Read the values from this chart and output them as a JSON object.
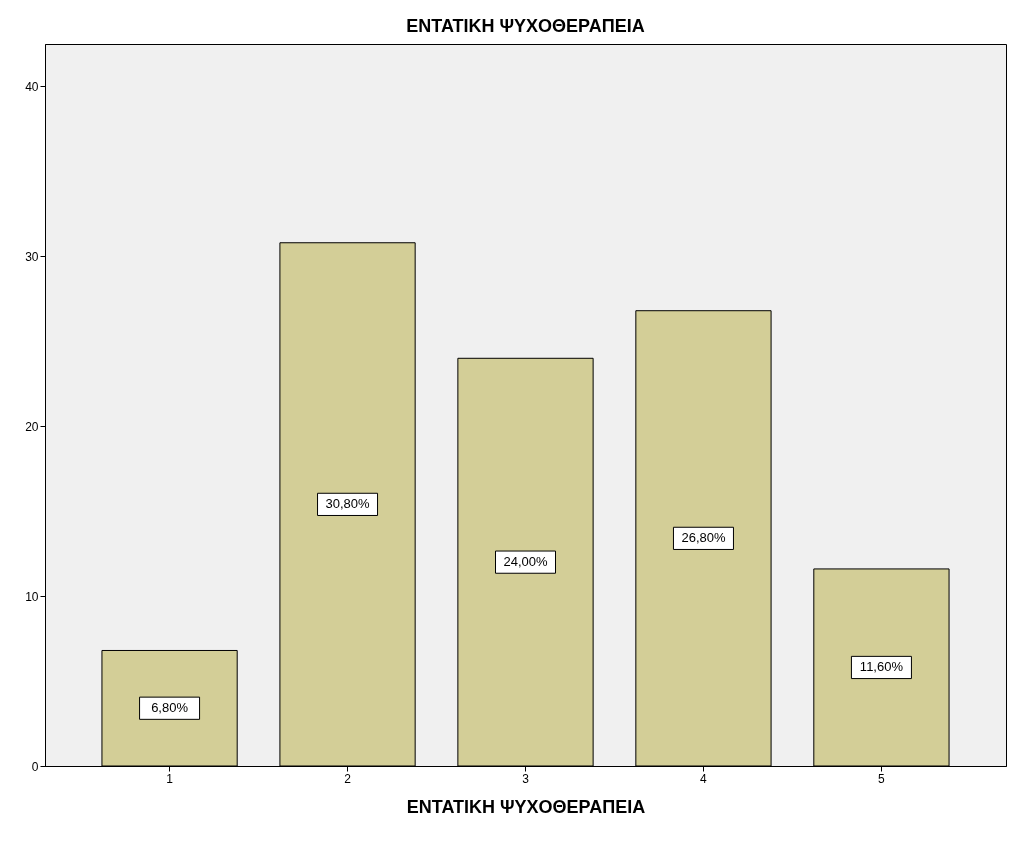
{
  "chart_data": {
    "type": "bar",
    "title": "ΕΝΤΑΤΙΚΗ ΨΥΧΟΘΕΡΑΠΕΙΑ",
    "xlabel": "ΕΝΤΑΤΙΚΗ ΨΥΧΟΘΕΡΑΠΕΙΑ",
    "categories": [
      "1",
      "2",
      "3",
      "4",
      "5"
    ],
    "values": [
      6.8,
      30.8,
      24.0,
      26.8,
      11.6
    ],
    "value_labels": [
      "6,80%",
      "30,80%",
      "24,00%",
      "26,80%",
      "11,60%"
    ],
    "color": "#d3ce97",
    "ylim": [
      0,
      42.5
    ],
    "yticks": [
      0,
      10,
      20,
      30,
      40
    ]
  }
}
